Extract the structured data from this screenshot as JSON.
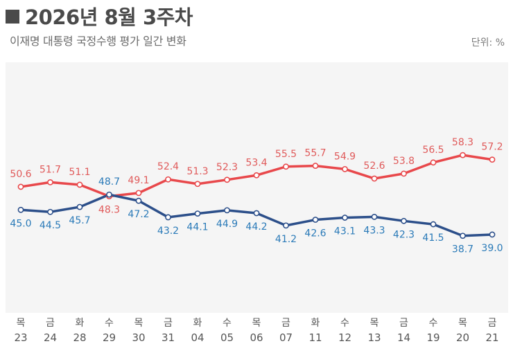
{
  "header": {
    "title": "2026년 8월 3주차",
    "subtitle": "이재명 대통령 국정수행 평가 일간 변화",
    "unit": "단위: %"
  },
  "chart_data": {
    "type": "line",
    "title": "2026년 8월 3주차",
    "subtitle": "이재명 대통령 국정수행 평가 일간 변화",
    "unit": "단위: %",
    "categories": [
      "23",
      "24",
      "28",
      "29",
      "30",
      "31",
      "04",
      "05",
      "06",
      "07",
      "11",
      "12",
      "13",
      "14",
      "19",
      "20",
      "21"
    ],
    "weekdays": [
      "목",
      "금",
      "화",
      "수",
      "목",
      "금",
      "화",
      "수",
      "목",
      "금",
      "화",
      "수",
      "목",
      "금",
      "수",
      "목",
      "금"
    ],
    "series": [
      {
        "values": [
          50.6,
          51.7,
          51.1,
          48.3,
          49.1,
          52.4,
          51.3,
          52.3,
          53.4,
          55.5,
          55.7,
          54.9,
          52.6,
          53.8,
          56.5,
          58.3,
          57.2
        ],
        "color": "#e8484b"
      },
      {
        "values": [
          45.0,
          44.5,
          45.7,
          48.7,
          47.2,
          43.2,
          44.1,
          44.9,
          44.2,
          41.2,
          42.6,
          43.1,
          43.3,
          42.3,
          41.5,
          38.7,
          39.0
        ],
        "color": "#2c4f8a"
      }
    ],
    "label_colors": [
      "#e05a5a",
      "#2a7ab8"
    ],
    "ylim": [
      20,
      80
    ],
    "grid": false,
    "background": "#f5f5f5"
  }
}
